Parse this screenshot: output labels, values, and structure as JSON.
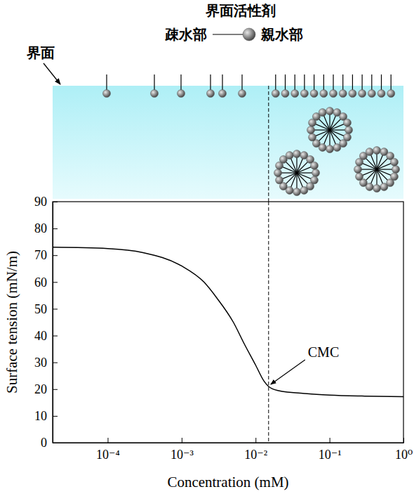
{
  "chart_data": {
    "type": "line",
    "x": [
      1.8e-05,
      0.0001,
      0.0003,
      0.001,
      0.002,
      0.003,
      0.005,
      0.007,
      0.01,
      0.013,
      0.015,
      0.02,
      0.05,
      0.1,
      0.3,
      1
    ],
    "values": [
      73,
      72.5,
      71,
      66,
      60,
      54,
      45,
      37,
      29,
      23,
      21,
      19.5,
      18.3,
      17.8,
      17.4,
      17.2
    ],
    "color": "#000000",
    "log": "x",
    "xlim": [
      1.8e-05,
      1
    ],
    "ylim": [
      0,
      90
    ],
    "xticks": [
      {
        "value": 0.0001,
        "label": "10⁻⁴"
      },
      {
        "value": 0.001,
        "label": "10⁻³"
      },
      {
        "value": 0.01,
        "label": "10⁻²"
      },
      {
        "value": 0.1,
        "label": "10⁻¹"
      },
      {
        "value": 1,
        "label": "10⁰"
      }
    ],
    "yticks": [
      0,
      10,
      20,
      30,
      40,
      50,
      60,
      70,
      80,
      90
    ],
    "xlabel": "Concentration (mM)",
    "ylabel": "Surface tension (mN/m)",
    "grid": false,
    "annotations": [
      {
        "text": "CMC",
        "x": 0.015,
        "y": 21
      }
    ],
    "reference_line": {
      "x": 0.015,
      "line_style": "dashed"
    }
  },
  "diagram": {
    "title": "界面活性剤",
    "hydrophobic_label": "疎水部",
    "hydrophilic_label": "親水部",
    "interface_label": "界面"
  }
}
